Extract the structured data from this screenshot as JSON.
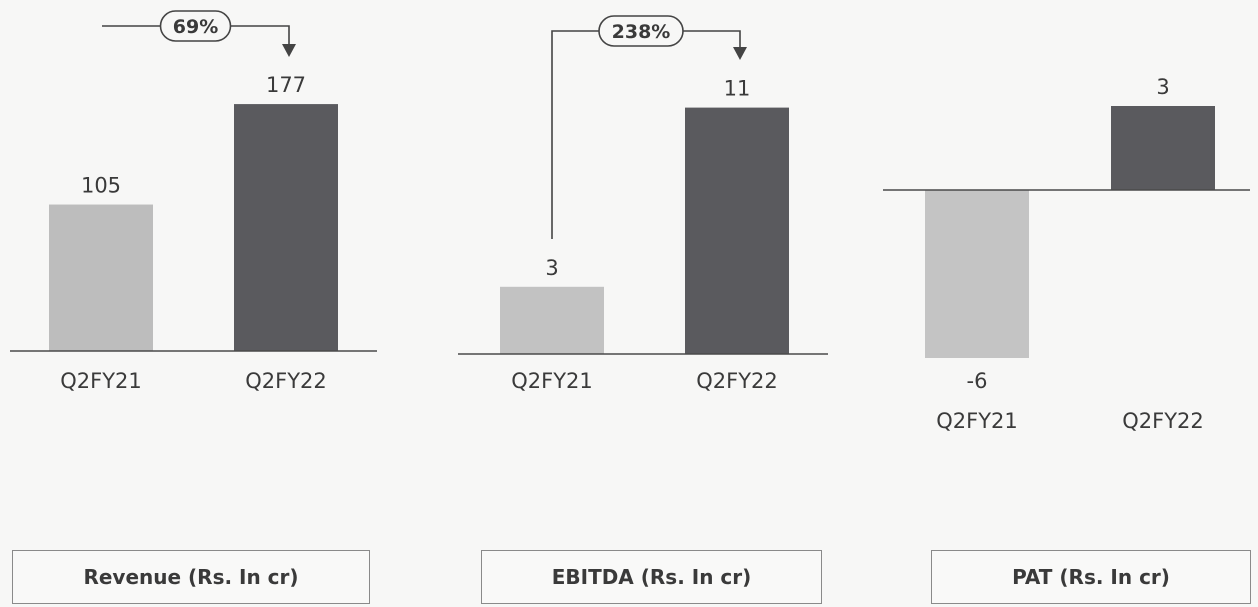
{
  "chart_data": [
    {
      "type": "bar",
      "title": "Revenue (Rs. In cr)",
      "categories": [
        "Q2FY21",
        "Q2FY22"
      ],
      "values": [
        105,
        177
      ],
      "growth_label": "69%",
      "colors": [
        "#bdbdbd",
        "#5a5a5e"
      ]
    },
    {
      "type": "bar",
      "title": "EBITDA (Rs. In cr)",
      "categories": [
        "Q2FY21",
        "Q2FY22"
      ],
      "values": [
        3,
        11
      ],
      "growth_label": "238%",
      "colors": [
        "#c2c2c2",
        "#5a5a5e"
      ]
    },
    {
      "type": "bar",
      "title": "PAT (Rs. In cr)",
      "categories": [
        "Q2FY21",
        "Q2FY22"
      ],
      "values": [
        -6,
        3
      ],
      "colors": [
        "#c4c4c4",
        "#5a5a5e"
      ]
    }
  ]
}
